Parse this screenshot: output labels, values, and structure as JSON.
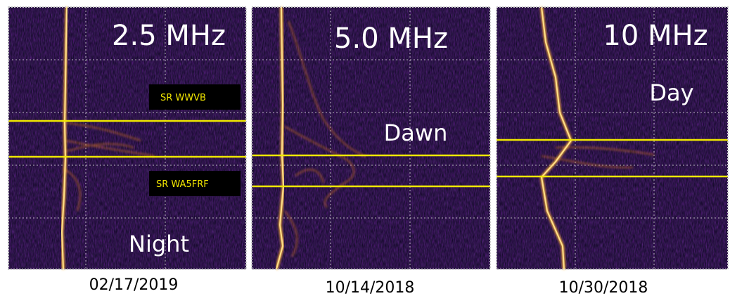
{
  "panels": [
    {
      "frequency": "2.5 MHz",
      "period": "Night",
      "date": "02/17/2019",
      "annotations": [
        "SR WWVB",
        "SR WA5FRF"
      ]
    },
    {
      "frequency": "5.0 MHz",
      "period": "Dawn",
      "date": "10/14/2018"
    },
    {
      "frequency": "10 MHz",
      "period": "Day",
      "date": "10/30/2018"
    }
  ]
}
